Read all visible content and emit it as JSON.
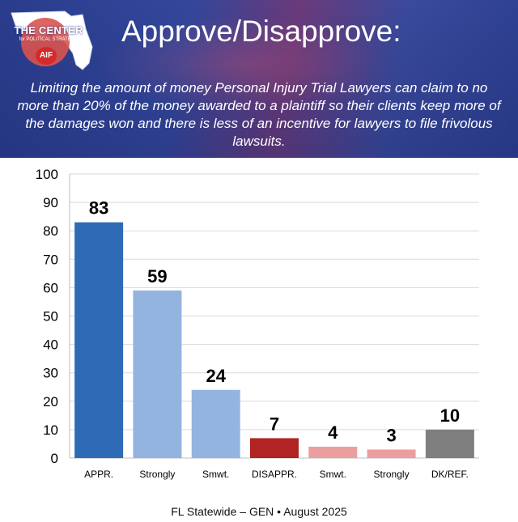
{
  "logo": {
    "line1": "THE CENTER",
    "line2": "for POLITICAL STRATEGY",
    "badge": "AIF"
  },
  "header": {
    "title": "Approve/Disapprove:",
    "subtitle": "Limiting the amount of money Personal Injury Trial Lawyers can claim to no more than 20% of the money awarded to a plaintiff so their clients keep more of the damages won and there is less of an incentive for lawyers to file frivolous lawsuits."
  },
  "chart_data": {
    "type": "bar",
    "categories": [
      "APPR.",
      "Strongly",
      "Smwt.",
      "DISAPPR.",
      "Smwt.",
      "Strongly",
      "DK/REF."
    ],
    "values": [
      83,
      59,
      24,
      7,
      4,
      3,
      10
    ],
    "colors": [
      "#2f6ab7",
      "#94b4e0",
      "#94b4e0",
      "#b22424",
      "#ec9e9e",
      "#ec9e9e",
      "#7f7f7f"
    ],
    "ylim": [
      0,
      100
    ],
    "yticks": [
      0,
      10,
      20,
      30,
      40,
      50,
      60,
      70,
      80,
      90,
      100
    ],
    "grid": true,
    "xlabel": "",
    "ylabel": ""
  },
  "footer": {
    "text": "FL Statewide – GEN  •  August 2025"
  }
}
